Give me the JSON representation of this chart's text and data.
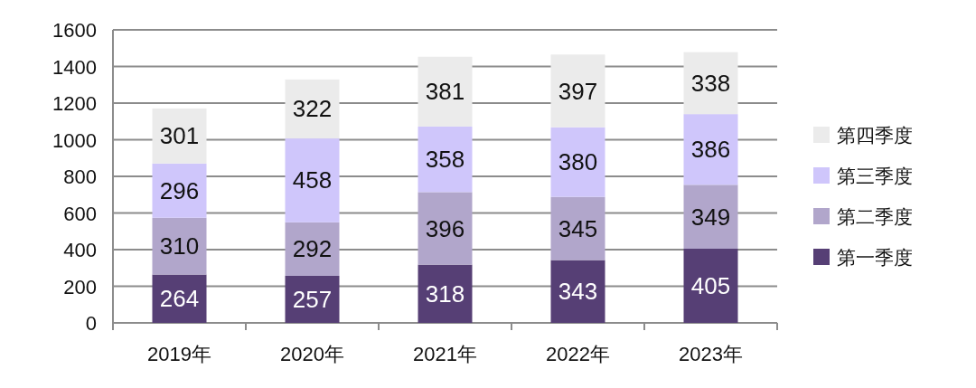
{
  "chart_data": {
    "type": "bar",
    "stacked": true,
    "categories": [
      "2019年",
      "2020年",
      "2021年",
      "2022年",
      "2023年"
    ],
    "series": [
      {
        "name": "第一季度",
        "color": "#563f75",
        "values": [
          264,
          257,
          318,
          343,
          405
        ]
      },
      {
        "name": "第二季度",
        "color": "#b1a6cb",
        "values": [
          310,
          292,
          396,
          345,
          349
        ]
      },
      {
        "name": "第三季度",
        "color": "#cfc6fb",
        "values": [
          296,
          458,
          358,
          380,
          386
        ]
      },
      {
        "name": "第四季度",
        "color": "#ebebeb",
        "values": [
          301,
          322,
          381,
          397,
          338
        ]
      }
    ],
    "ylim": [
      0,
      1600
    ],
    "yticks": [
      0,
      200,
      400,
      600,
      800,
      1000,
      1200,
      1400,
      1600
    ],
    "grid": "y",
    "data_labels": true,
    "legend": "right"
  }
}
